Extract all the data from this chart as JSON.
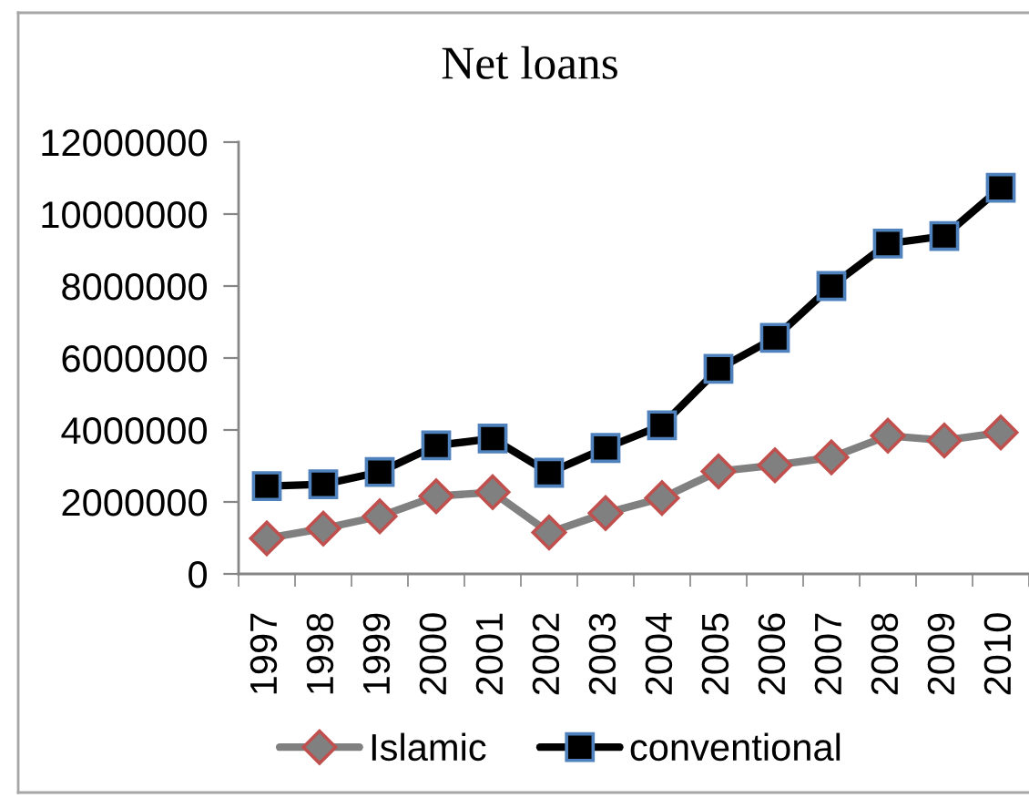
{
  "chart_data": {
    "type": "line",
    "title": "Net loans",
    "categories": [
      "1997",
      "1998",
      "1999",
      "2000",
      "2001",
      "2002",
      "2003",
      "2004",
      "2005",
      "2006",
      "2007",
      "2008",
      "2009",
      "2010"
    ],
    "series": [
      {
        "name": "Islamic",
        "color": "#808080",
        "marker": "diamond",
        "values": [
          990000,
          1260000,
          1600000,
          2160000,
          2270000,
          1150000,
          1690000,
          2110000,
          2850000,
          3020000,
          3240000,
          3840000,
          3710000,
          3930000
        ]
      },
      {
        "name": "conventional",
        "color": "#000000",
        "marker": "square",
        "values": [
          2440000,
          2490000,
          2830000,
          3570000,
          3760000,
          2810000,
          3500000,
          4130000,
          5700000,
          6560000,
          8000000,
          9180000,
          9390000,
          10730000
        ]
      }
    ],
    "ylim": [
      0,
      12000000
    ],
    "yticks": [
      0,
      2000000,
      4000000,
      6000000,
      8000000,
      10000000,
      12000000
    ],
    "line_style": "solid",
    "legend": "bottom"
  }
}
